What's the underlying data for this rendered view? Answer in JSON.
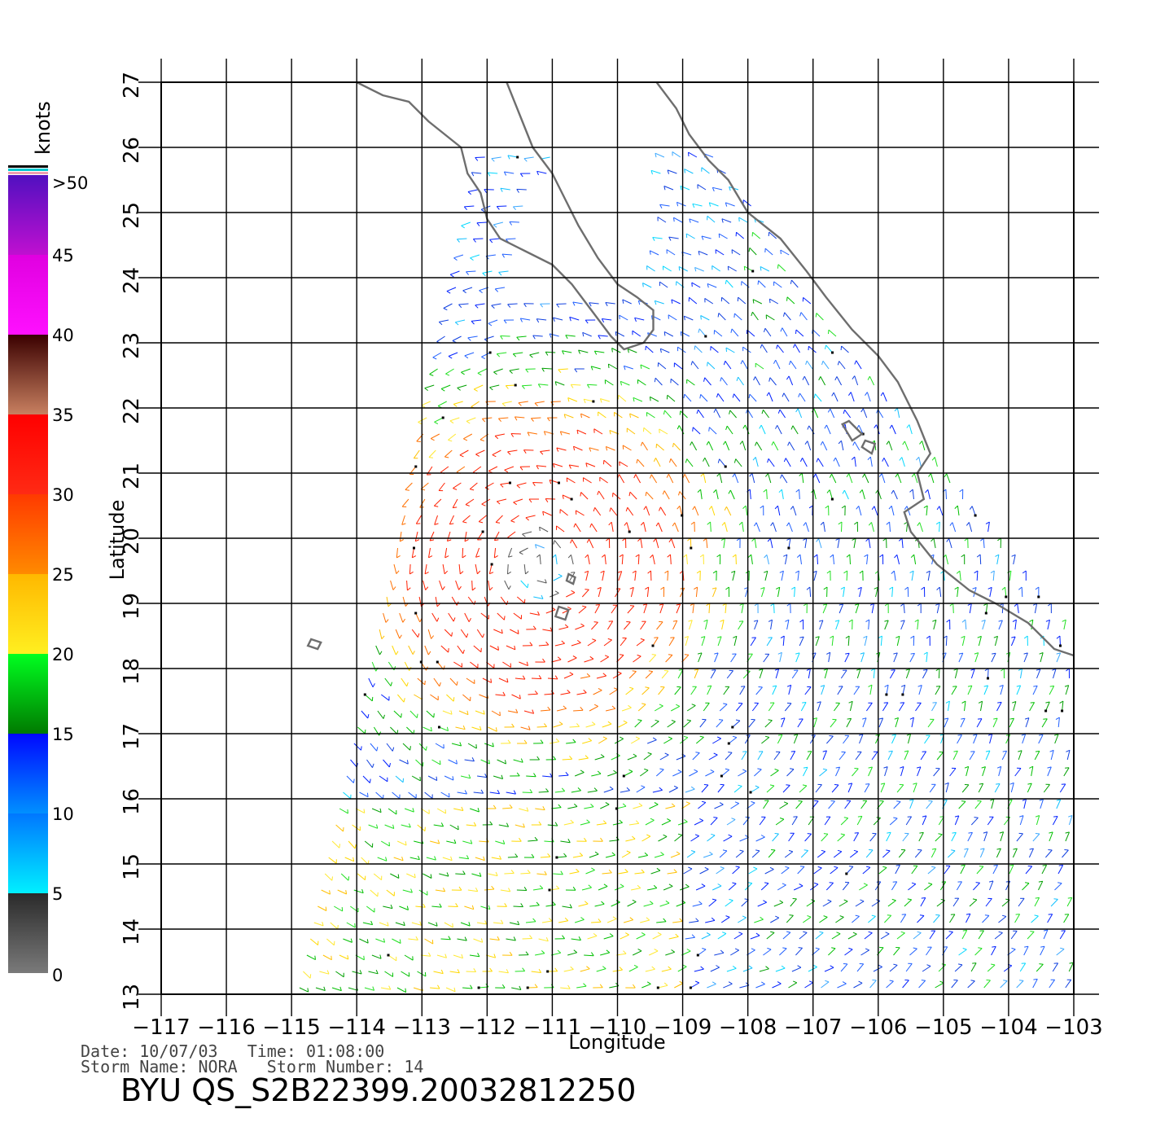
{
  "colorbar": {
    "unit_label": "knots",
    "max_label": ">50",
    "stops": [
      {
        "label": "0",
        "from": 0,
        "to": 5,
        "colors": [
          "#7a7a7a",
          "#2a2a2a"
        ]
      },
      {
        "label": "5",
        "from": 5,
        "to": 10,
        "colors": [
          "#00f0ff",
          "#0077ff"
        ]
      },
      {
        "label": "10",
        "from": 10,
        "to": 15,
        "colors": [
          "#0090ff",
          "#0008ff"
        ]
      },
      {
        "label": "15",
        "from": 15,
        "to": 20,
        "colors": [
          "#007a00",
          "#00ff20"
        ]
      },
      {
        "label": "20",
        "from": 20,
        "to": 25,
        "colors": [
          "#ffef20",
          "#ffb800"
        ]
      },
      {
        "label": "25",
        "from": 25,
        "to": 30,
        "colors": [
          "#ff8a00",
          "#ff3a00"
        ]
      },
      {
        "label": "30",
        "from": 30,
        "to": 35,
        "colors": [
          "#ff2a14",
          "#ff0000"
        ]
      },
      {
        "label": "35",
        "from": 35,
        "to": 40,
        "colors": [
          "#c88060",
          "#3a0000"
        ]
      },
      {
        "label": "40",
        "from": 40,
        "to": 45,
        "colors": [
          "#ff10ff",
          "#e000e0"
        ]
      },
      {
        "label": "45",
        "from": 45,
        "to": 50,
        "colors": [
          "#c010d0",
          "#5010c0"
        ]
      }
    ],
    "extra_colors": [
      "#f0a0b0",
      "#00c8d0",
      "#000000"
    ]
  },
  "map": {
    "lon_range": [
      -117,
      -103
    ],
    "lat_range": [
      13,
      27
    ],
    "lon_ticks": [
      -117,
      -116,
      -115,
      -114,
      -113,
      -112,
      -111,
      -110,
      -109,
      -108,
      -107,
      -106,
      -105,
      -104,
      -103
    ],
    "lon_tick_labels": [
      "−117",
      "−116",
      "−115",
      "−114",
      "−113",
      "−112",
      "−111",
      "−110",
      "−109",
      "−108",
      "−107",
      "−106",
      "−105",
      "−104",
      "−103"
    ],
    "lat_ticks": [
      13,
      14,
      15,
      16,
      17,
      18,
      19,
      20,
      21,
      22,
      23,
      24,
      25,
      26,
      27
    ],
    "lat_tick_labels": [
      "13",
      "14",
      "15",
      "16",
      "17",
      "18",
      "19",
      "20",
      "21",
      "22",
      "23",
      "24",
      "25",
      "26",
      "27"
    ],
    "xlabel": "Longitude",
    "ylabel": "Latitude",
    "grid": true,
    "coastline_color": "#6e6e6e",
    "swath": {
      "lon_bottom": -114.9,
      "lon_top": -112.0,
      "lat_top": 26.0
    },
    "storm_center": {
      "lon": -111.2,
      "lat": 19.6
    },
    "rain_flag_color": "#000000"
  },
  "footer": {
    "date_line": "Date: 10/07/03   Time: 01:08:00",
    "storm_line": "Storm Name: NORA   Storm Number: 14",
    "product": "BYU QS_S2B22399.20032812250"
  }
}
